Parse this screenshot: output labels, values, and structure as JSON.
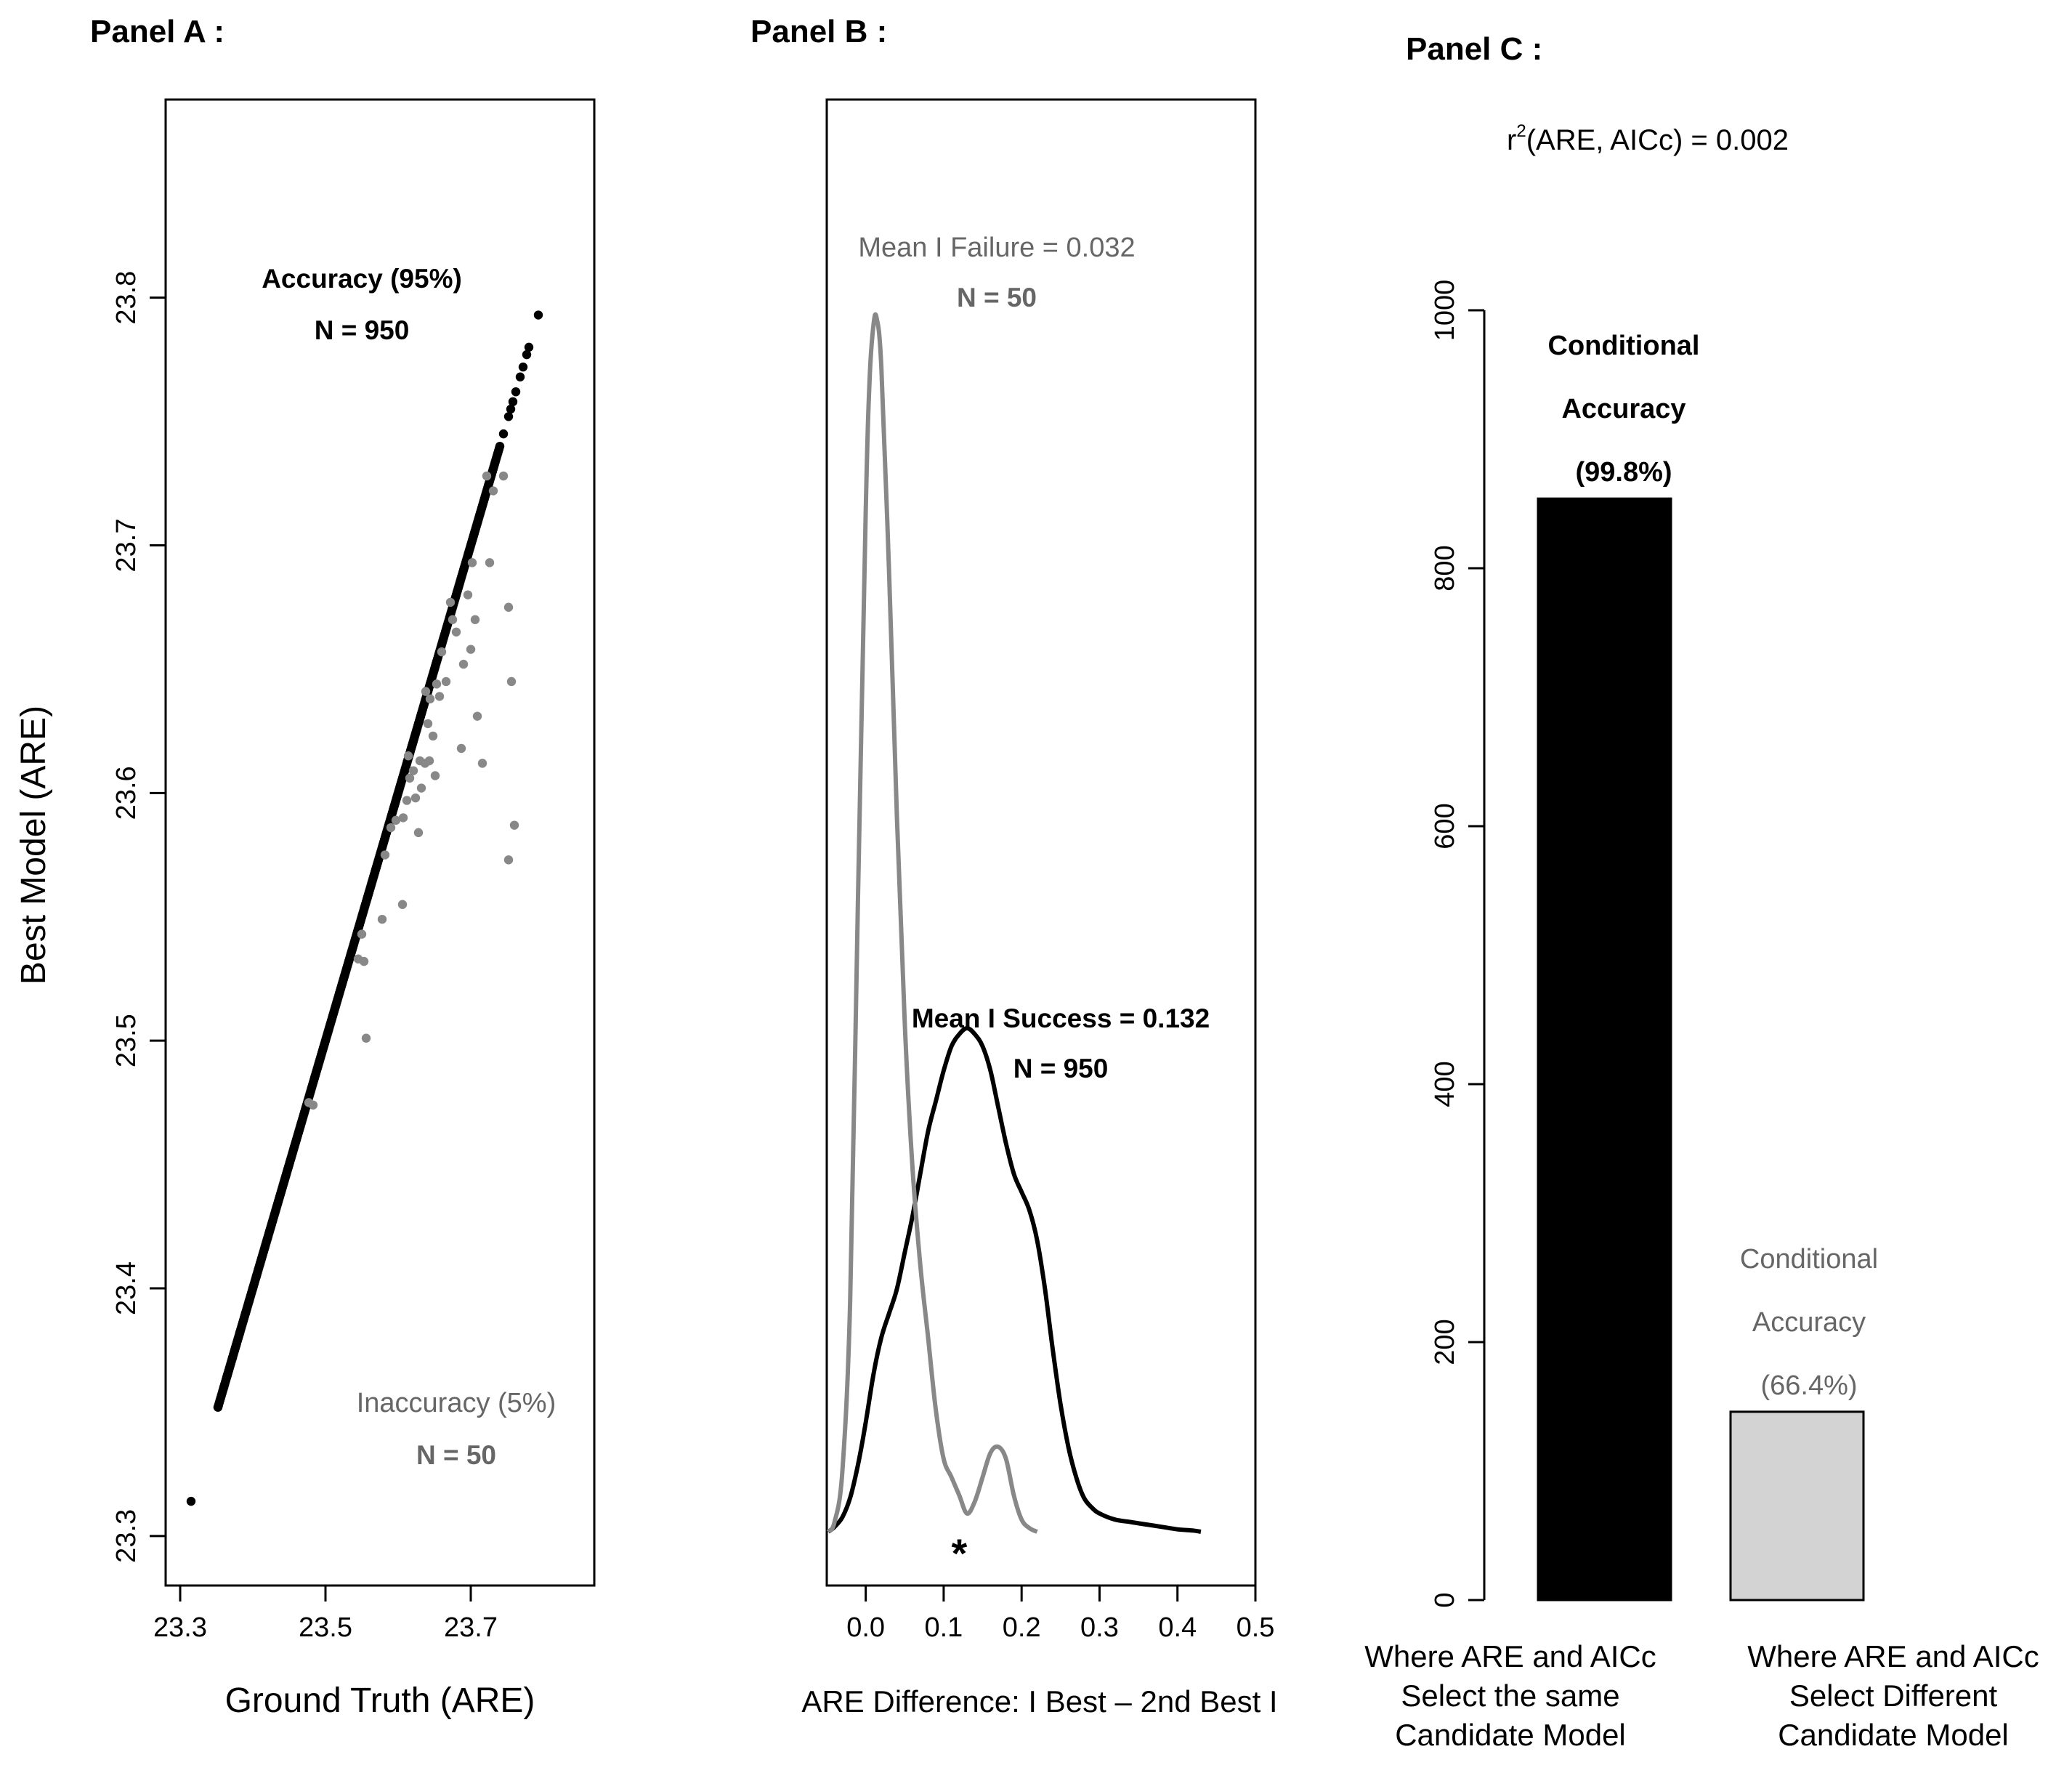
{
  "chart_data": [
    {
      "panel_label": "Panel A :",
      "type": "scatter",
      "xlabel": "Ground Truth (ARE)",
      "ylabel": "Best Model (ARE)",
      "xlim": [
        23.28,
        23.87
      ],
      "ylim": [
        23.28,
        23.88
      ],
      "x_ticks": [
        "23.3",
        "23.5",
        "23.7"
      ],
      "x_tick_values": [
        23.3,
        23.5,
        23.7
      ],
      "y_ticks": [
        "23.3",
        "23.4",
        "23.5",
        "23.6",
        "23.7",
        "23.8"
      ],
      "y_tick_values": [
        23.3,
        23.4,
        23.5,
        23.6,
        23.7,
        23.8
      ],
      "annotations": {
        "accurate_title": "Accuracy (95%)",
        "accurate_n": "N = 950",
        "inaccurate_title": "Inaccuracy (5%)",
        "inaccurate_n": "N = 50"
      },
      "series": [
        {
          "name": "Accurate",
          "color": "#000000",
          "diagonal_range": [
            23.352,
            23.74
          ],
          "extra_points": [
            [
              23.315,
              23.314
            ],
            [
              23.352,
              23.352
            ],
            [
              23.36,
              23.36
            ],
            [
              23.365,
              23.365
            ],
            [
              23.372,
              23.372
            ],
            [
              23.377,
              23.377
            ],
            [
              23.382,
              23.382
            ],
            [
              23.39,
              23.39
            ],
            [
              23.395,
              23.395
            ],
            [
              23.4,
              23.4
            ],
            [
              23.405,
              23.405
            ],
            [
              23.41,
              23.41
            ],
            [
              23.745,
              23.745
            ],
            [
              23.752,
              23.752
            ],
            [
              23.755,
              23.755
            ],
            [
              23.758,
              23.758
            ],
            [
              23.762,
              23.762
            ],
            [
              23.768,
              23.768
            ],
            [
              23.772,
              23.772
            ],
            [
              23.777,
              23.777
            ],
            [
              23.78,
              23.78
            ],
            [
              23.793,
              23.793
            ]
          ]
        },
        {
          "name": "Inaccurate",
          "color": "#888888",
          "points": [
            [
              23.477,
              23.475
            ],
            [
              23.483,
              23.474
            ],
            [
              23.545,
              23.533
            ],
            [
              23.553,
              23.532
            ],
            [
              23.55,
              23.543
            ],
            [
              23.556,
              23.501
            ],
            [
              23.578,
              23.549
            ],
            [
              23.582,
              23.575
            ],
            [
              23.59,
              23.586
            ],
            [
              23.597,
              23.589
            ],
            [
              23.606,
              23.555
            ],
            [
              23.607,
              23.59
            ],
            [
              23.612,
              23.597
            ],
            [
              23.616,
              23.606
            ],
            [
              23.621,
              23.609
            ],
            [
              23.614,
              23.615
            ],
            [
              23.628,
              23.584
            ],
            [
              23.63,
              23.613
            ],
            [
              23.632,
              23.602
            ],
            [
              23.637,
              23.612
            ],
            [
              23.643,
              23.613
            ],
            [
              23.641,
              23.628
            ],
            [
              23.638,
              23.641
            ],
            [
              23.644,
              23.638
            ],
            [
              23.653,
              23.644
            ],
            [
              23.657,
              23.639
            ],
            [
              23.648,
              23.623
            ],
            [
              23.651,
              23.607
            ],
            [
              23.666,
              23.645
            ],
            [
              23.672,
              23.677
            ],
            [
              23.675,
              23.67
            ],
            [
              23.68,
              23.665
            ],
            [
              23.687,
              23.618
            ],
            [
              23.69,
              23.652
            ],
            [
              23.696,
              23.68
            ],
            [
              23.7,
              23.658
            ],
            [
              23.706,
              23.67
            ],
            [
              23.702,
              23.693
            ],
            [
              23.709,
              23.631
            ],
            [
              23.716,
              23.612
            ],
            [
              23.722,
              23.728
            ],
            [
              23.726,
              23.693
            ],
            [
              23.731,
              23.722
            ],
            [
              23.745,
              23.728
            ],
            [
              23.752,
              23.675
            ],
            [
              23.756,
              23.645
            ],
            [
              23.76,
              23.587
            ],
            [
              23.752,
              23.573
            ],
            [
              23.66,
              23.657
            ],
            [
              23.624,
              23.598
            ]
          ]
        }
      ]
    },
    {
      "panel_label": "Panel B :",
      "type": "line",
      "xlabel": "ARE Difference: I Best – 2nd Best I",
      "xlim": [
        -0.05,
        0.5
      ],
      "x_ticks": [
        "0.0",
        "0.1",
        "0.2",
        "0.3",
        "0.4",
        "0.5"
      ],
      "x_tick_values": [
        0.0,
        0.1,
        0.2,
        0.3,
        0.4,
        0.5
      ],
      "y_axis_labels": "none",
      "annotations": {
        "failure_mean": "Mean I Failure = 0.032",
        "failure_n": "N = 50",
        "success_mean": "Mean I Success = 0.132",
        "success_n": "N = 950",
        "star": "*"
      },
      "series": [
        {
          "name": "Failure density",
          "color": "#888888",
          "x": [
            -0.048,
            -0.04,
            -0.03,
            -0.02,
            -0.01,
            0.0,
            0.005,
            0.01,
            0.014,
            0.02,
            0.03,
            0.04,
            0.05,
            0.06,
            0.07,
            0.08,
            0.09,
            0.1,
            0.11,
            0.12,
            0.13,
            0.14,
            0.15,
            0.16,
            0.17,
            0.18,
            0.19,
            0.2,
            0.21,
            0.22
          ],
          "y": [
            0.0,
            0.008,
            0.05,
            0.19,
            0.52,
            0.84,
            0.95,
            0.995,
            1.0,
            0.96,
            0.79,
            0.59,
            0.42,
            0.3,
            0.22,
            0.16,
            0.1,
            0.06,
            0.045,
            0.03,
            0.015,
            0.025,
            0.045,
            0.065,
            0.07,
            0.06,
            0.03,
            0.01,
            0.003,
            0.0
          ]
        },
        {
          "name": "Success density",
          "color": "#000000",
          "x": [
            -0.048,
            -0.04,
            -0.03,
            -0.02,
            -0.01,
            0.0,
            0.01,
            0.02,
            0.03,
            0.04,
            0.05,
            0.06,
            0.07,
            0.08,
            0.09,
            0.1,
            0.11,
            0.12,
            0.13,
            0.14,
            0.15,
            0.16,
            0.17,
            0.18,
            0.19,
            0.2,
            0.21,
            0.22,
            0.23,
            0.24,
            0.25,
            0.26,
            0.27,
            0.28,
            0.29,
            0.3,
            0.32,
            0.34,
            0.36,
            0.38,
            0.4,
            0.42,
            0.43
          ],
          "y": [
            0.0,
            0.004,
            0.012,
            0.028,
            0.055,
            0.09,
            0.13,
            0.16,
            0.18,
            0.2,
            0.23,
            0.26,
            0.295,
            0.33,
            0.355,
            0.38,
            0.4,
            0.41,
            0.415,
            0.41,
            0.4,
            0.38,
            0.35,
            0.32,
            0.295,
            0.28,
            0.265,
            0.24,
            0.2,
            0.15,
            0.105,
            0.07,
            0.045,
            0.028,
            0.02,
            0.015,
            0.01,
            0.008,
            0.006,
            0.004,
            0.002,
            0.001,
            0.0
          ]
        }
      ],
      "star_x": 0.12
    },
    {
      "panel_label": "Panel C :",
      "type": "bar",
      "subtitle": "r²(ARE, AICc) = 0.002",
      "subtitle_base": "r",
      "subtitle_sup": "2",
      "subtitle_rest": "(ARE, AICc) = 0.002",
      "ylim": [
        0,
        1000
      ],
      "y_ticks": [
        "0",
        "200",
        "400",
        "600",
        "800",
        "1000"
      ],
      "y_tick_values": [
        0,
        200,
        400,
        600,
        800,
        1000
      ],
      "categories": [
        [
          "Where ARE and AICc",
          "Select the same",
          "Candidate Model"
        ],
        [
          "Where ARE and AICc",
          "Select Different",
          "Candidate Model"
        ]
      ],
      "values": [
        854,
        146
      ],
      "colors": [
        "#000000",
        "#d3d3d3"
      ],
      "bar_labels": [
        [
          "Conditional",
          "Accuracy",
          "(99.8%)"
        ],
        [
          "Conditional",
          "Accuracy",
          "(66.4%)"
        ]
      ]
    }
  ]
}
